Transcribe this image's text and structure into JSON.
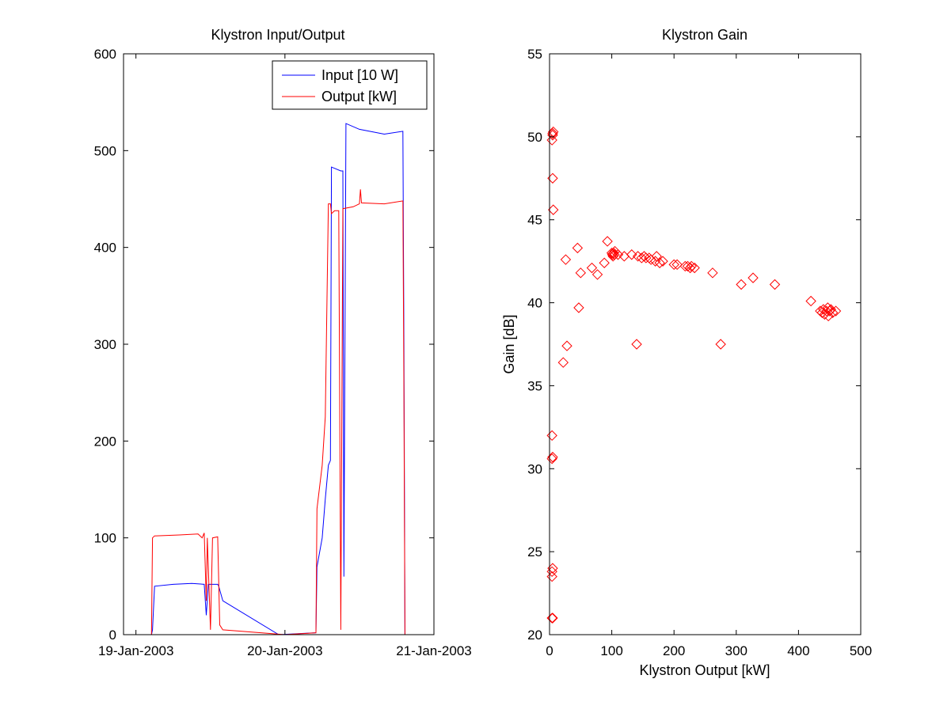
{
  "figure": {
    "background": "#ffffff"
  },
  "colors": {
    "input": "#0000ff",
    "output": "#ff0000",
    "axes": "#000000"
  },
  "chart_data": [
    {
      "type": "line",
      "title": "Klystron Input/Output",
      "xlabel": "",
      "ylabel": "",
      "x_axis": "date",
      "xlim": [
        "2003-01-18 22:00",
        "2003-01-21 00:00"
      ],
      "ylim": [
        0,
        600
      ],
      "xticks": [
        "19-Jan-2003",
        "20-Jan-2003",
        "21-Jan-2003"
      ],
      "yticks": [
        0,
        100,
        200,
        300,
        400,
        500,
        600
      ],
      "grid": false,
      "legend": {
        "position": "top-right",
        "entries": [
          "Input [10 W]",
          "Output [kW]"
        ]
      },
      "series": [
        {
          "name": "Input [10 W]",
          "color": "#0000ff",
          "points": [
            [
              "2003-01-19 00:00",
              0
            ],
            [
              "2003-01-19 02:30",
              0
            ],
            [
              "2003-01-19 02:40",
              5
            ],
            [
              "2003-01-19 03:00",
              50
            ],
            [
              "2003-01-19 06:00",
              52
            ],
            [
              "2003-01-19 09:00",
              53
            ],
            [
              "2003-01-19 11:00",
              52
            ],
            [
              "2003-01-19 11:20",
              20
            ],
            [
              "2003-01-19 11:40",
              52
            ],
            [
              "2003-01-19 13:10",
              52
            ],
            [
              "2003-01-19 13:20",
              50
            ],
            [
              "2003-01-19 14:00",
              35
            ],
            [
              "2003-01-19 23:00",
              0
            ],
            [
              "2003-01-20 05:00",
              2
            ],
            [
              "2003-01-20 05:10",
              70
            ],
            [
              "2003-01-20 06:00",
              100
            ],
            [
              "2003-01-20 06:30",
              140
            ],
            [
              "2003-01-20 07:00",
              175
            ],
            [
              "2003-01-20 07:20",
              180
            ],
            [
              "2003-01-20 07:30",
              483
            ],
            [
              "2003-01-20 09:00",
              479
            ],
            [
              "2003-01-20 09:20",
              479
            ],
            [
              "2003-01-20 09:30",
              60
            ],
            [
              "2003-01-20 09:50",
              528
            ],
            [
              "2003-01-20 12:00",
              522
            ],
            [
              "2003-01-20 16:00",
              517
            ],
            [
              "2003-01-20 19:00",
              520
            ],
            [
              "2003-01-20 19:10",
              300
            ],
            [
              "2003-01-20 19:20",
              0
            ]
          ]
        },
        {
          "name": "Output [kW]",
          "color": "#ff0000",
          "points": [
            [
              "2003-01-19 00:00",
              0
            ],
            [
              "2003-01-19 02:30",
              0
            ],
            [
              "2003-01-19 02:40",
              100
            ],
            [
              "2003-01-19 03:00",
              102
            ],
            [
              "2003-01-19 07:00",
              103
            ],
            [
              "2003-01-19 10:00",
              104
            ],
            [
              "2003-01-19 10:40",
              100
            ],
            [
              "2003-01-19 11:00",
              105
            ],
            [
              "2003-01-19 11:20",
              35
            ],
            [
              "2003-01-19 11:30",
              100
            ],
            [
              "2003-01-19 12:00",
              5
            ],
            [
              "2003-01-19 12:20",
              100
            ],
            [
              "2003-01-19 13:10",
              101
            ],
            [
              "2003-01-19 13:30",
              10
            ],
            [
              "2003-01-19 14:00",
              5
            ],
            [
              "2003-01-20 00:00",
              0
            ],
            [
              "2003-01-20 05:00",
              2
            ],
            [
              "2003-01-20 05:10",
              130
            ],
            [
              "2003-01-20 06:00",
              175
            ],
            [
              "2003-01-20 06:30",
              225
            ],
            [
              "2003-01-20 07:00",
              445
            ],
            [
              "2003-01-20 07:20",
              445
            ],
            [
              "2003-01-20 07:30",
              435
            ],
            [
              "2003-01-20 08:00",
              438
            ],
            [
              "2003-01-20 08:40",
              438
            ],
            [
              "2003-01-20 09:00",
              5
            ],
            [
              "2003-01-20 09:20",
              440
            ],
            [
              "2003-01-20 11:00",
              442
            ],
            [
              "2003-01-20 12:00",
              445
            ],
            [
              "2003-01-20 12:10",
              460
            ],
            [
              "2003-01-20 12:20",
              446
            ],
            [
              "2003-01-20 16:00",
              445
            ],
            [
              "2003-01-20 19:00",
              448
            ],
            [
              "2003-01-20 19:10",
              250
            ],
            [
              "2003-01-20 19:20",
              0
            ]
          ]
        }
      ]
    },
    {
      "type": "scatter",
      "title": "Klystron Gain",
      "xlabel": "Klystron Output [kW]",
      "ylabel": "Gain [dB]",
      "xlim": [
        0,
        500
      ],
      "ylim": [
        20,
        55
      ],
      "xticks": [
        0,
        100,
        200,
        300,
        400,
        500
      ],
      "yticks": [
        20,
        25,
        30,
        35,
        40,
        45,
        50,
        55
      ],
      "grid": false,
      "marker": "diamond",
      "color": "#ff0000",
      "points": [
        [
          5,
          50.2
        ],
        [
          6,
          50.3
        ],
        [
          5,
          50.1
        ],
        [
          4,
          49.8
        ],
        [
          5,
          47.5
        ],
        [
          6,
          45.6
        ],
        [
          4,
          32.0
        ],
        [
          5,
          30.7
        ],
        [
          4,
          30.6
        ],
        [
          5,
          24.0
        ],
        [
          4,
          23.8
        ],
        [
          4,
          23.5
        ],
        [
          5,
          21.0
        ],
        [
          4,
          21.0
        ],
        [
          22,
          36.4
        ],
        [
          26,
          42.6
        ],
        [
          28,
          37.4
        ],
        [
          45,
          43.3
        ],
        [
          47,
          39.7
        ],
        [
          50,
          41.8
        ],
        [
          68,
          42.1
        ],
        [
          77,
          41.7
        ],
        [
          88,
          42.4
        ],
        [
          93,
          43.7
        ],
        [
          100,
          43.0
        ],
        [
          101,
          42.9
        ],
        [
          102,
          42.8
        ],
        [
          103,
          43.0
        ],
        [
          104,
          42.9
        ],
        [
          105,
          43.1
        ],
        [
          110,
          42.9
        ],
        [
          120,
          42.8
        ],
        [
          132,
          42.9
        ],
        [
          140,
          37.5
        ],
        [
          142,
          42.8
        ],
        [
          148,
          42.7
        ],
        [
          152,
          42.8
        ],
        [
          155,
          42.7
        ],
        [
          160,
          42.7
        ],
        [
          163,
          42.6
        ],
        [
          170,
          42.5
        ],
        [
          172,
          42.8
        ],
        [
          177,
          42.4
        ],
        [
          182,
          42.5
        ],
        [
          200,
          42.3
        ],
        [
          205,
          42.3
        ],
        [
          218,
          42.2
        ],
        [
          222,
          42.2
        ],
        [
          226,
          42.1
        ],
        [
          228,
          42.2
        ],
        [
          233,
          42.1
        ],
        [
          262,
          41.8
        ],
        [
          275,
          37.5
        ],
        [
          308,
          41.1
        ],
        [
          327,
          41.5
        ],
        [
          362,
          41.1
        ],
        [
          420,
          40.1
        ],
        [
          435,
          39.5
        ],
        [
          438,
          39.4
        ],
        [
          440,
          39.6
        ],
        [
          442,
          39.3
        ],
        [
          445,
          39.5
        ],
        [
          447,
          39.7
        ],
        [
          448,
          39.2
        ],
        [
          450,
          39.5
        ],
        [
          452,
          39.6
        ],
        [
          455,
          39.4
        ],
        [
          460,
          39.5
        ]
      ]
    }
  ]
}
